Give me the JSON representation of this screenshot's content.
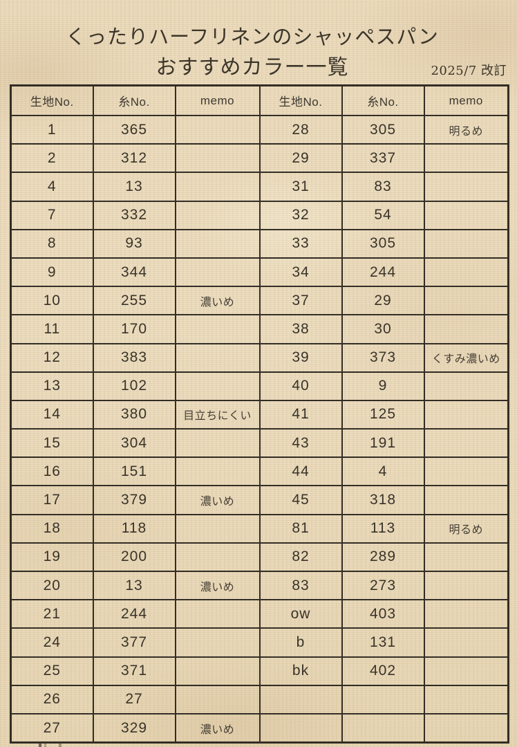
{
  "page": {
    "title_line1": "くったりハーフリネンのシャッペスパン",
    "title_line2": "おすすめカラー一覧",
    "revision": "2025/7 改訂"
  },
  "colors": {
    "paper": "#ecdcbd",
    "table_border": "#322d25",
    "text": "#3a352d"
  },
  "table": {
    "headers": [
      "生地No.",
      "糸No.",
      "memo",
      "生地No.",
      "糸No.",
      "memo"
    ],
    "rows": [
      [
        "1",
        "365",
        "",
        "28",
        "305",
        "明るめ"
      ],
      [
        "2",
        "312",
        "",
        "29",
        "337",
        ""
      ],
      [
        "4",
        "13",
        "",
        "31",
        "83",
        ""
      ],
      [
        "7",
        "332",
        "",
        "32",
        "54",
        ""
      ],
      [
        "8",
        "93",
        "",
        "33",
        "305",
        ""
      ],
      [
        "9",
        "344",
        "",
        "34",
        "244",
        ""
      ],
      [
        "10",
        "255",
        "濃いめ",
        "37",
        "29",
        ""
      ],
      [
        "11",
        "170",
        "",
        "38",
        "30",
        ""
      ],
      [
        "12",
        "383",
        "",
        "39",
        "373",
        "くすみ濃いめ"
      ],
      [
        "13",
        "102",
        "",
        "40",
        "9",
        ""
      ],
      [
        "14",
        "380",
        "目立ちにくい",
        "41",
        "125",
        ""
      ],
      [
        "15",
        "304",
        "",
        "43",
        "191",
        ""
      ],
      [
        "16",
        "151",
        "",
        "44",
        "4",
        ""
      ],
      [
        "17",
        "379",
        "濃いめ",
        "45",
        "318",
        ""
      ],
      [
        "18",
        "118",
        "",
        "81",
        "113",
        "明るめ"
      ],
      [
        "19",
        "200",
        "",
        "82",
        "289",
        ""
      ],
      [
        "20",
        "13",
        "濃いめ",
        "83",
        "273",
        ""
      ],
      [
        "21",
        "244",
        "",
        "ow",
        "403",
        ""
      ],
      [
        "24",
        "377",
        "",
        "b",
        "131",
        ""
      ],
      [
        "25",
        "371",
        "",
        "bk",
        "402",
        ""
      ],
      [
        "26",
        "27",
        "",
        "",
        "",
        ""
      ],
      [
        "27",
        "329",
        "濃いめ",
        "",
        "",
        ""
      ]
    ]
  }
}
